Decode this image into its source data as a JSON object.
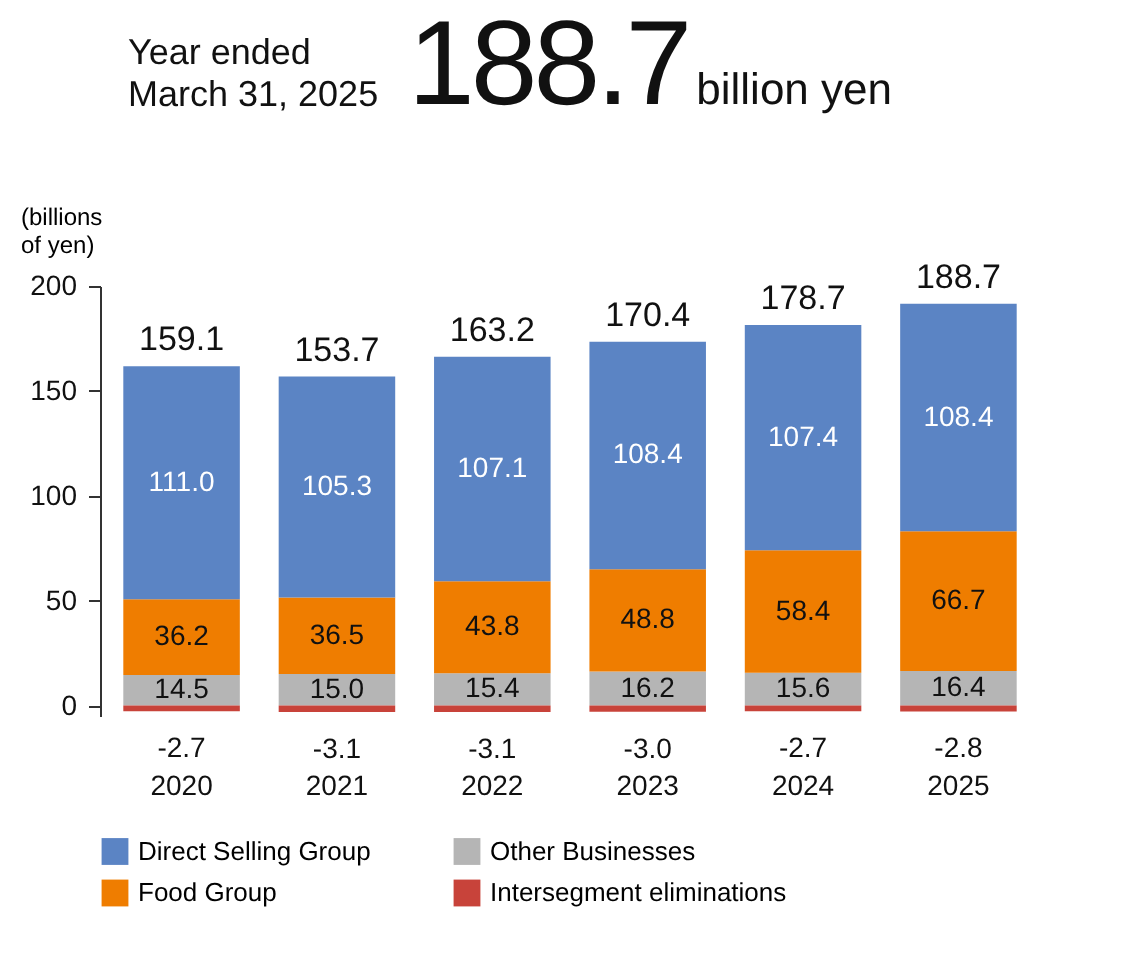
{
  "chart_data": {
    "type": "bar",
    "title": "Year ended March 31, 2025",
    "subtitle": "188.7",
    "ylabel": "(billions of yen)",
    "annotations": [
      "billion yen"
    ],
    "categories": [
      "2020",
      "2021",
      "2022",
      "2023",
      "2024",
      "2025"
    ],
    "stacked": true,
    "series": [
      {
        "name": "Other Businesses",
        "color": "#b5b5b5",
        "values": [
          14.5,
          15.0,
          15.4,
          16.2,
          15.6,
          16.4
        ],
        "value_labels": [
          "14.5",
          "15.0",
          "15.4",
          "16.2",
          "15.6",
          "16.4"
        ]
      },
      {
        "name": "Food Group",
        "color": "#ef7d00",
        "values": [
          36.2,
          36.5,
          43.8,
          48.8,
          58.4,
          66.7
        ],
        "value_labels": [
          "36.2",
          "36.5",
          "43.8",
          "48.8",
          "58.4",
          "66.7"
        ]
      },
      {
        "name": "Direct Selling Group",
        "color": "#5b84c4",
        "values": [
          111.0,
          105.3,
          107.1,
          108.4,
          107.4,
          108.4
        ],
        "value_labels": [
          "111.0",
          "105.3",
          "107.1",
          "108.4",
          "107.4",
          "108.4"
        ]
      },
      {
        "name": "Intersegment eliminations",
        "color": "#c8433a",
        "values": [
          -2.7,
          -3.1,
          -3.1,
          -3.0,
          -2.7,
          -2.8
        ],
        "value_labels": [
          "-2.7",
          "-3.1",
          "-3.1",
          "-3.0",
          "-2.7",
          "-2.8"
        ]
      }
    ],
    "totals": [
      "159.1",
      "153.7",
      "163.2",
      "170.4",
      "178.7",
      "188.7"
    ],
    "ylim": [
      -5,
      200
    ],
    "yticks": [
      0,
      50,
      100,
      150,
      200
    ],
    "grid": false,
    "legend": "bottom"
  }
}
